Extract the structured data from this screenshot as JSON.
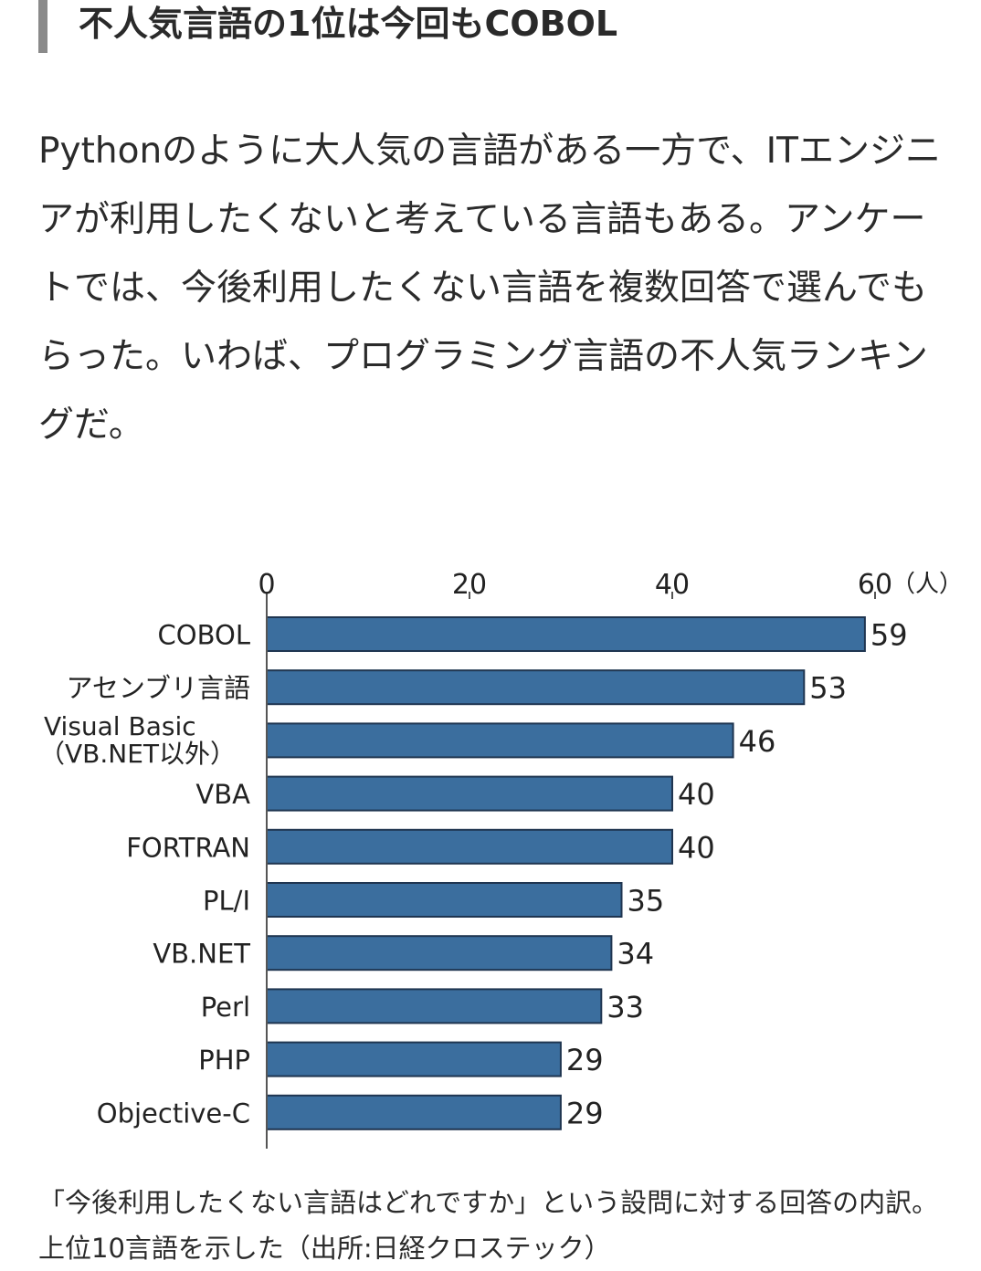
{
  "article": {
    "heading": "不人気言語の1位は今回もCOBOL",
    "paragraph": "Pythonのように大人気の言語がある一方で、ITエンジニアが利用したくないと考えている言語もある。アンケートでは、今後利用したくない言語を複数回答で選んでもらった。いわば、プログラミング言語の不人気ランキングだ。",
    "caption": "「今後利用したくない言語はどれですか」という設問に対する回答の内訳。上位10言語を示した（出所:日経クロステック）"
  },
  "chart_data": {
    "type": "bar",
    "orientation": "horizontal",
    "categories": [
      "COBOL",
      "アセンブリ言語",
      "Visual Basic\n（VB.NET以外）",
      "VBA",
      "FORTRAN",
      "PL/I",
      "VB.NET",
      "Perl",
      "PHP",
      "Objective-C"
    ],
    "values": [
      59,
      53,
      46,
      40,
      40,
      35,
      34,
      33,
      29,
      29
    ],
    "xticks": [
      "0",
      "20",
      "40",
      "60"
    ],
    "unit": "（人）",
    "xlim": [
      0,
      60
    ],
    "axis_position": "top",
    "grid": false,
    "bar_color": "#3b6e9e",
    "bar_border_color": "#1f3550"
  }
}
